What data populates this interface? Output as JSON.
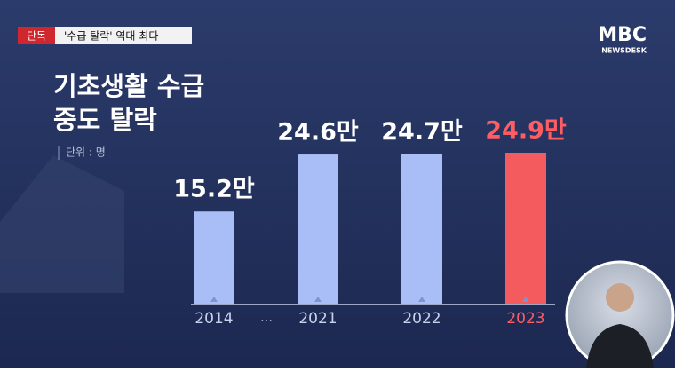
{
  "chart_data": {
    "type": "bar",
    "badge": "단독",
    "headline": "'수급 탈락' 역대 최다",
    "logo": "MBC",
    "logo_sub": "NEWSDESK",
    "title": [
      "기초생활 수급",
      "중도 탈락"
    ],
    "unit_note": "단위 : 명",
    "categories": [
      "2014",
      "2021",
      "2022",
      "2023"
    ],
    "gap_mark": "…",
    "values": [
      152000,
      246000,
      247000,
      249000
    ],
    "value_labels": [
      "15.2만",
      "24.6만",
      "24.7만",
      "24.9만"
    ],
    "colors": [
      "#a9bdf6",
      "#a9bdf6",
      "#a9bdf6",
      "#f45b5f"
    ],
    "label_colors": [
      "#ffffff",
      "#ffffff",
      "#ffffff",
      "#ff5d62"
    ]
  }
}
